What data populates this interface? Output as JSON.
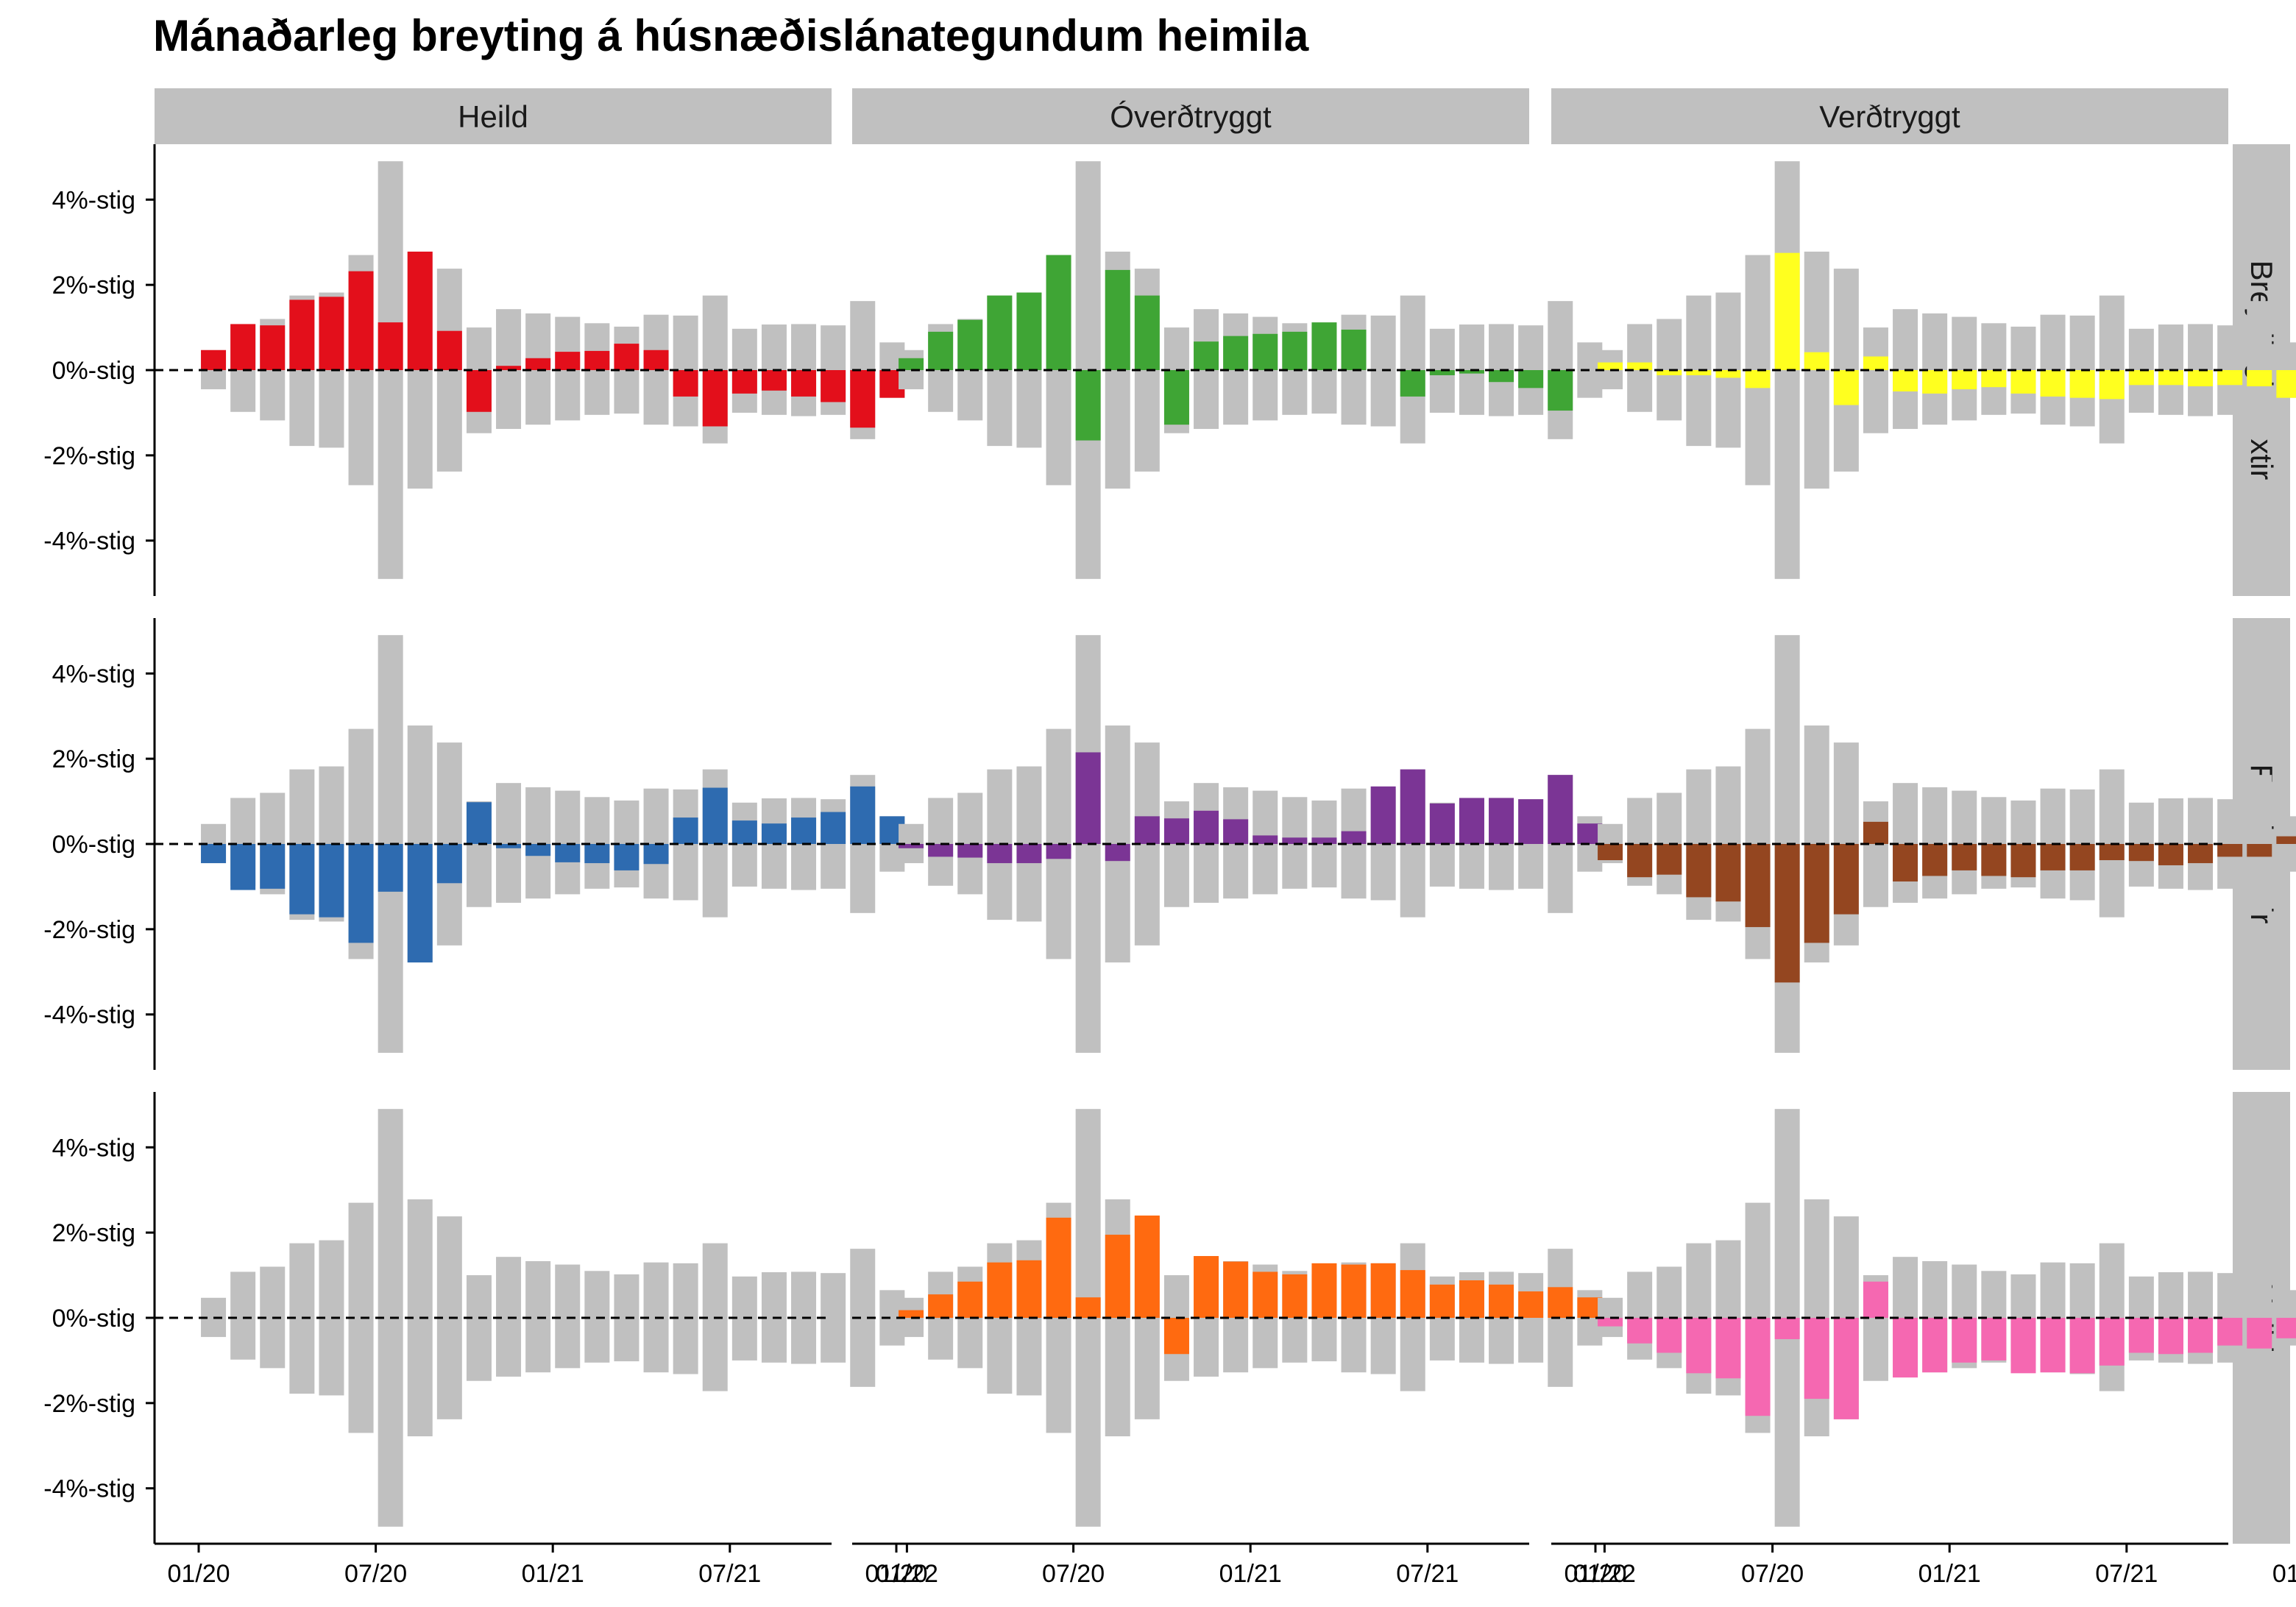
{
  "chart_data": {
    "type": "bar",
    "title": "Mánaðarleg breyting á húsnæðislánategundum heimila",
    "xlabel": "",
    "ylabel": "",
    "ylim": [
      -5.3,
      5.3
    ],
    "y_ticks": [
      {
        "value": 4,
        "label": "4%-stig"
      },
      {
        "value": 2,
        "label": "2%-stig"
      },
      {
        "value": 0,
        "label": "0%-stig"
      },
      {
        "value": -2,
        "label": "-2%-stig"
      },
      {
        "value": -4,
        "label": "-4%-stig"
      }
    ],
    "x_ticks": [
      {
        "index": 0,
        "label": "01/20"
      },
      {
        "index": 6,
        "label": "07/20"
      },
      {
        "index": 12,
        "label": "01/21"
      },
      {
        "index": 18,
        "label": "07/21"
      },
      {
        "index": 24,
        "label": "01/22"
      }
    ],
    "months": [
      "2020-01",
      "2020-02",
      "2020-03",
      "2020-04",
      "2020-05",
      "2020-06",
      "2020-07",
      "2020-08",
      "2020-09",
      "2020-10",
      "2020-11",
      "2020-12",
      "2021-01",
      "2021-02",
      "2021-03",
      "2021-04",
      "2021-05",
      "2021-06",
      "2021-07",
      "2021-08",
      "2021-09",
      "2021-10",
      "2021-11",
      "2021-12",
      "2022-01"
    ],
    "column_labels": [
      "Heild",
      "Óverðtryggt",
      "Verðtryggt"
    ],
    "row_labels": [
      "Breytilegir vextir",
      "Fastir vextir",
      "Heild"
    ],
    "background_color": "#c0c0c0",
    "background_envelope": {
      "positive": [
        0.47,
        1.08,
        1.2,
        1.75,
        1.82,
        2.7,
        4.9,
        2.78,
        2.38,
        1.0,
        1.43,
        1.33,
        1.25,
        1.1,
        1.02,
        1.3,
        1.28,
        1.75,
        0.97,
        1.07,
        1.08,
        1.05,
        1.62,
        0.65
      ],
      "negative": [
        -0.45,
        -0.98,
        -1.18,
        -1.78,
        -1.82,
        -2.7,
        -4.9,
        -2.78,
        -2.38,
        -1.48,
        -1.38,
        -1.28,
        -1.18,
        -1.05,
        -1.02,
        -1.28,
        -1.32,
        -1.72,
        -1.0,
        -1.05,
        -1.08,
        -1.05,
        -1.62,
        -0.65
      ]
    },
    "panels": [
      {
        "row": "Breytilegir vextir",
        "column": "Heild",
        "color": "#e30f1b",
        "values": [
          0.47,
          1.08,
          1.05,
          1.65,
          1.72,
          2.32,
          1.12,
          2.78,
          0.92,
          -0.98,
          0.1,
          0.28,
          0.43,
          0.45,
          0.62,
          0.47,
          -0.62,
          -1.32,
          -0.55,
          -0.48,
          -0.62,
          -0.75,
          -1.35,
          -0.65
        ]
      },
      {
        "row": "Breytilegir vextir",
        "column": "Óverðtryggt",
        "color": "#3fa535",
        "values": [
          0.28,
          0.9,
          1.18,
          1.75,
          1.82,
          2.7,
          -1.65,
          2.35,
          1.75,
          -1.28,
          0.67,
          0.8,
          0.85,
          0.9,
          1.12,
          0.95,
          0.0,
          -0.62,
          -0.12,
          -0.08,
          -0.28,
          -0.42,
          -0.95,
          0.0
        ]
      },
      {
        "row": "Breytilegir vextir",
        "column": "Verðtryggt",
        "color": "#ffff1f",
        "values": [
          0.18,
          0.18,
          -0.12,
          -0.12,
          -0.18,
          -0.42,
          2.75,
          0.42,
          -0.82,
          0.32,
          -0.5,
          -0.55,
          -0.45,
          -0.4,
          -0.55,
          -0.62,
          -0.65,
          -0.68,
          -0.35,
          -0.35,
          -0.38,
          -0.35,
          -0.38,
          -0.65
        ]
      },
      {
        "row": "Fastir vextir",
        "column": "Heild",
        "color": "#2e6bb0",
        "values": [
          -0.45,
          -1.08,
          -1.05,
          -1.65,
          -1.72,
          -2.32,
          -1.12,
          -2.78,
          -0.92,
          0.98,
          -0.1,
          -0.28,
          -0.43,
          -0.45,
          -0.62,
          -0.47,
          0.62,
          1.32,
          0.55,
          0.48,
          0.62,
          0.75,
          1.35,
          0.65
        ]
      },
      {
        "row": "Fastir vextir",
        "column": "Óverðtryggt",
        "color": "#7b3595",
        "values": [
          -0.1,
          -0.3,
          -0.32,
          -0.45,
          -0.45,
          -0.35,
          2.15,
          -0.4,
          0.65,
          0.6,
          0.78,
          0.58,
          0.2,
          0.15,
          0.15,
          0.3,
          1.35,
          1.75,
          0.95,
          1.08,
          1.08,
          1.05,
          1.62,
          0.48
        ]
      },
      {
        "row": "Fastir vextir",
        "column": "Verðtryggt",
        "color": "#944620",
        "values": [
          -0.38,
          -0.78,
          -0.72,
          -1.25,
          -1.35,
          -1.95,
          -3.25,
          -2.32,
          -1.65,
          0.52,
          -0.88,
          -0.75,
          -0.62,
          -0.75,
          -0.78,
          -0.62,
          -0.62,
          -0.38,
          -0.4,
          -0.5,
          -0.45,
          -0.3,
          -0.3,
          0.18
        ]
      },
      {
        "row": "Heild",
        "column": "Heild",
        "color": "#c0c0c0",
        "values": [
          0,
          0,
          0,
          0,
          0,
          0,
          0,
          0,
          0,
          0,
          0,
          0,
          0,
          0,
          0,
          0,
          0,
          0,
          0,
          0,
          0,
          0,
          0,
          0
        ]
      },
      {
        "row": "Heild",
        "column": "Óverðtryggt",
        "color": "#ff6a10",
        "values": [
          0.18,
          0.55,
          0.85,
          1.3,
          1.35,
          2.35,
          0.48,
          1.95,
          2.4,
          -0.85,
          1.45,
          1.32,
          1.08,
          1.02,
          1.28,
          1.25,
          1.28,
          1.12,
          0.78,
          0.88,
          0.78,
          0.62,
          0.72,
          0.48
        ]
      },
      {
        "row": "Heild",
        "column": "Verðtryggt",
        "color": "#f568b1",
        "values": [
          -0.2,
          -0.6,
          -0.82,
          -1.3,
          -1.42,
          -2.3,
          -0.5,
          -1.9,
          -2.38,
          0.85,
          -1.4,
          -1.28,
          -1.05,
          -1.0,
          -1.3,
          -1.28,
          -1.3,
          -1.12,
          -0.82,
          -0.85,
          -0.82,
          -0.65,
          -0.72,
          -0.48
        ]
      }
    ]
  }
}
